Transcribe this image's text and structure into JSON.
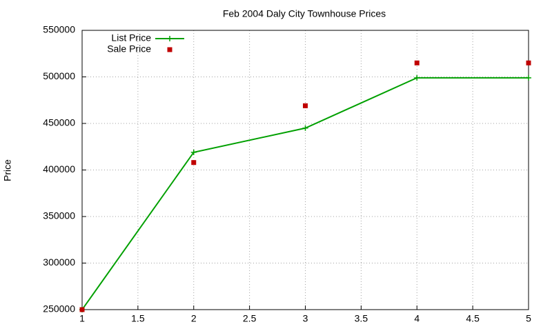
{
  "chart_data": {
    "type": "line",
    "title": "Feb 2004 Daly City Townhouse Prices",
    "y_label": "Price",
    "x": [
      1,
      2,
      3,
      4,
      5
    ],
    "series": [
      {
        "name": "List Price",
        "color": "#00a000",
        "style": "linespoints",
        "values": [
          250000,
          419000,
          445000,
          499000,
          499000
        ]
      },
      {
        "name": "Sale Price",
        "color": "#c00000",
        "style": "points",
        "values": [
          250000,
          408000,
          469000,
          515000,
          515000
        ]
      }
    ],
    "xlim": [
      1,
      5
    ],
    "xticks": [
      1,
      1.5,
      2,
      2.5,
      3,
      3.5,
      4,
      4.5,
      5
    ],
    "ylim": [
      250000,
      550000
    ],
    "yticks": [
      250000,
      300000,
      350000,
      400000,
      450000,
      500000,
      550000
    ],
    "grid": true,
    "legend": "top-left"
  }
}
